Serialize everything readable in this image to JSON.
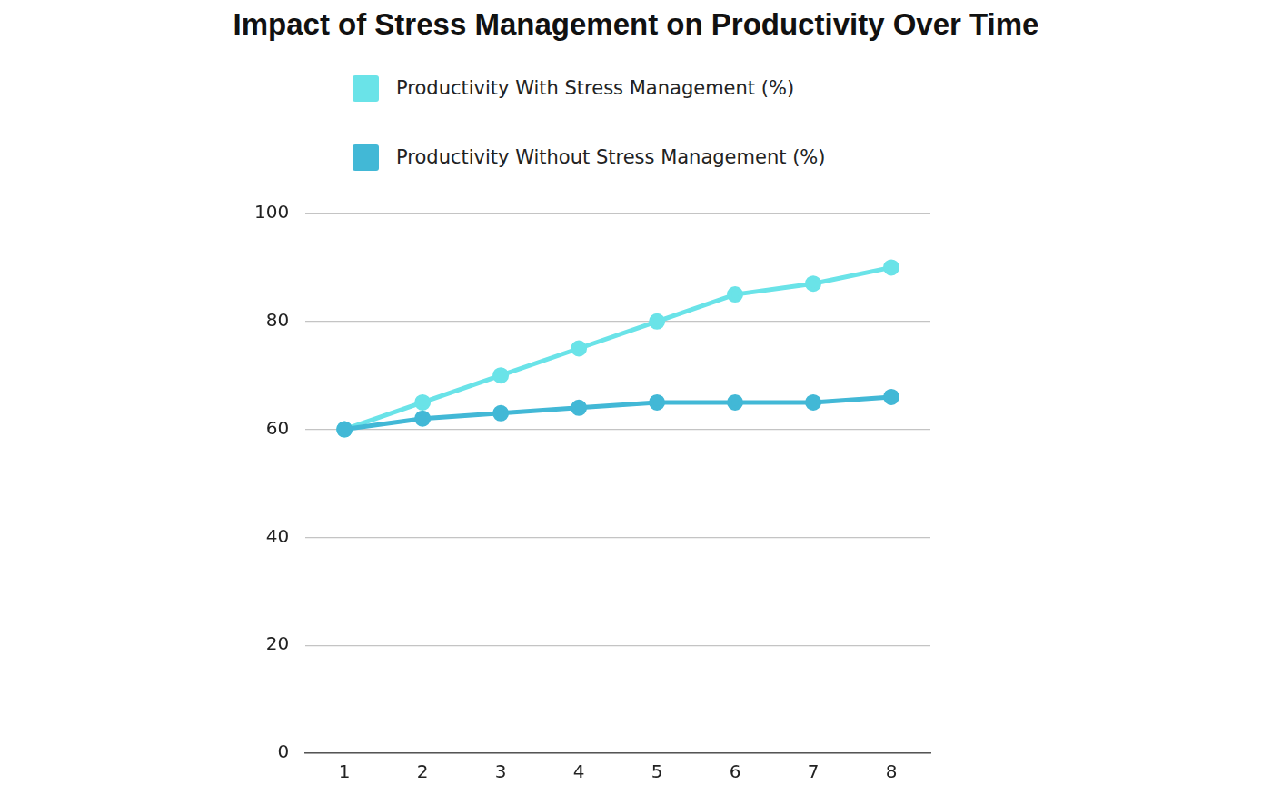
{
  "chart_data": {
    "type": "line",
    "title": "Impact of Stress Management on Productivity Over Time",
    "categories": [
      "1",
      "2",
      "3",
      "4",
      "5",
      "6",
      "7",
      "8"
    ],
    "series": [
      {
        "name": "Productivity With Stress Management (%)",
        "color": "#6ae3e8",
        "values": [
          60,
          65,
          70,
          75,
          80,
          85,
          87,
          90
        ],
        "marker": "circle"
      },
      {
        "name": "Productivity Without Stress Management (%)",
        "color": "#42b8d6",
        "values": [
          60,
          62,
          63,
          64,
          65,
          65,
          65,
          66
        ],
        "marker": "circle"
      }
    ],
    "ylim": [
      0,
      100
    ],
    "yticks": [
      0,
      20,
      40,
      60,
      80,
      100
    ],
    "grid": true,
    "legend": "top"
  }
}
